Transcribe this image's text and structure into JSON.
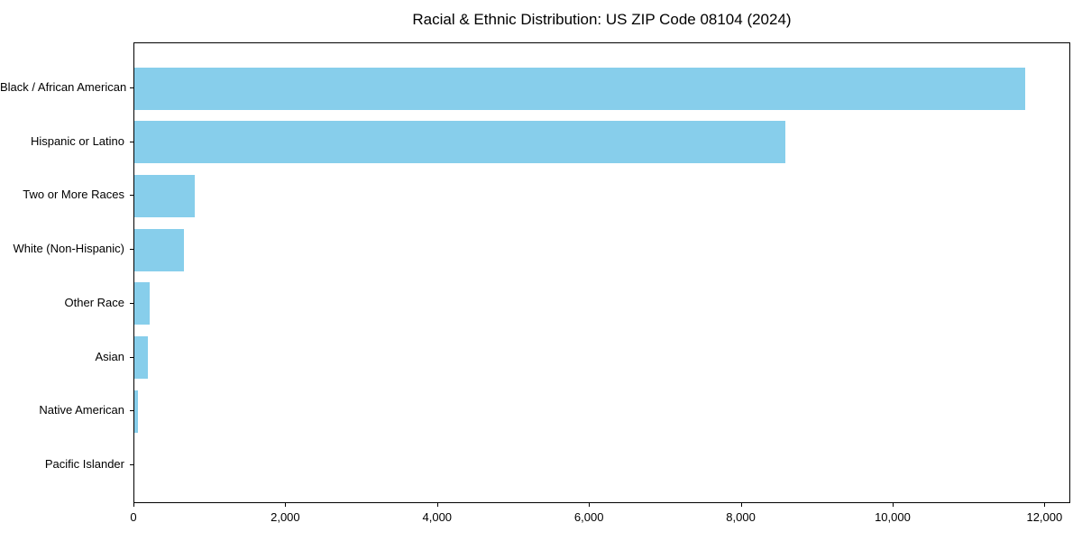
{
  "chart_data": {
    "type": "bar",
    "orientation": "horizontal",
    "title": "Racial & Ethnic Distribution: US ZIP Code 08104 (2024)",
    "xlabel": "",
    "ylabel": "",
    "categories": [
      "Black / African American",
      "Hispanic or Latino",
      "Two or More Races",
      "White (Non-Hispanic)",
      "Other Race",
      "Asian",
      "Native American",
      "Pacific Islander"
    ],
    "values": [
      11740,
      8570,
      800,
      650,
      200,
      180,
      50,
      0
    ],
    "x_ticks": [
      0,
      2000,
      4000,
      6000,
      8000,
      10000,
      12000
    ],
    "x_tick_labels": [
      "0",
      "2,000",
      "4,000",
      "6,000",
      "8,000",
      "10,000",
      "12,000"
    ],
    "xlim": [
      0,
      12340
    ],
    "grid": false,
    "legend": false,
    "bar_color": "#87CEEB",
    "background_color": "#ffffff",
    "text_color": "#000000"
  }
}
